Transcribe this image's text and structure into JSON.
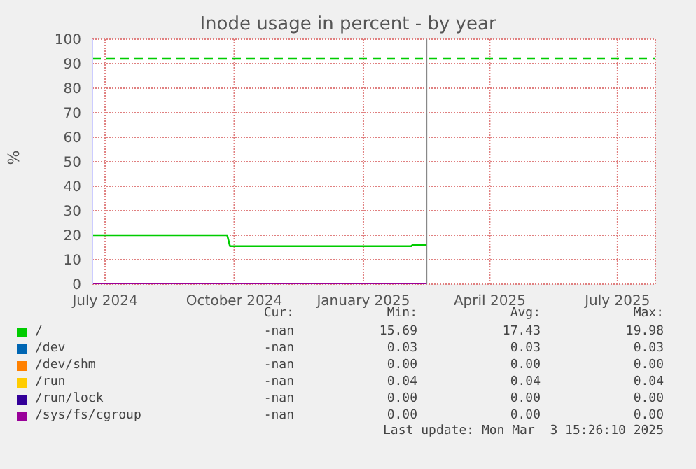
{
  "chart_data": {
    "type": "line",
    "title": "Inode usage in percent - by year",
    "ylabel": "%",
    "x": [
      "2024-06-22",
      "2024-09-26",
      "2024-09-28",
      "2025-02-04",
      "2025-02-05",
      "2025-02-15"
    ],
    "series": [
      {
        "name": "/",
        "color": "#00cc00",
        "values": [
          20,
          20,
          15.5,
          15.5,
          16,
          16
        ]
      },
      {
        "name": "/dev",
        "color": "#0066b3",
        "values": [
          null,
          null,
          null,
          null,
          null,
          null
        ]
      },
      {
        "name": "/dev/shm",
        "color": "#ff8000",
        "values": [
          null,
          null,
          null,
          null,
          null,
          null
        ]
      },
      {
        "name": "/run",
        "color": "#ffcc00",
        "values": [
          null,
          null,
          null,
          null,
          null,
          null
        ]
      },
      {
        "name": "/run/lock",
        "color": "#330099",
        "values": [
          null,
          null,
          null,
          null,
          null,
          null
        ]
      },
      {
        "name": "/sys/fs/cgroup",
        "color": "#990099",
        "values": [
          0,
          0,
          0,
          0,
          0,
          0
        ]
      }
    ],
    "xlim": [
      "2024-06-22",
      "2025-07-28"
    ],
    "xticks": [
      {
        "value": "2024-07-01",
        "label": "July 2024"
      },
      {
        "value": "2024-10-01",
        "label": "October 2024"
      },
      {
        "value": "2025-01-01",
        "label": "January 2025"
      },
      {
        "value": "2025-04-01",
        "label": "April 2025"
      },
      {
        "value": "2025-07-01",
        "label": "July 2025"
      }
    ],
    "ylim": [
      0,
      100
    ],
    "yticks": [
      0,
      10,
      20,
      30,
      40,
      50,
      60,
      70,
      80,
      90,
      100
    ],
    "grid": true,
    "legend": "bottom",
    "marker": "none",
    "line_style": "solid",
    "ref_lines": [
      {
        "axis": "y",
        "value": 92,
        "color": "#00cc00",
        "line_style": "dashed"
      },
      {
        "axis": "x",
        "value": "2025-02-15",
        "color": "#888888",
        "line_style": "solid"
      }
    ],
    "annotations": [
      "Cur:",
      "Min:",
      "Avg:",
      "Max:",
      "-nan",
      "15.69",
      "17.43",
      "19.98",
      "-nan",
      "0.03",
      "0.03",
      "0.03",
      "-nan",
      "0.00",
      "0.00",
      "0.00",
      "-nan",
      "0.04",
      "0.04",
      "0.04",
      "-nan",
      "0.00",
      "0.00",
      "0.00",
      "-nan",
      "0.00",
      "0.00",
      "0.00",
      "Last update: Mon Mar  3 15:26:10 2025"
    ]
  }
}
